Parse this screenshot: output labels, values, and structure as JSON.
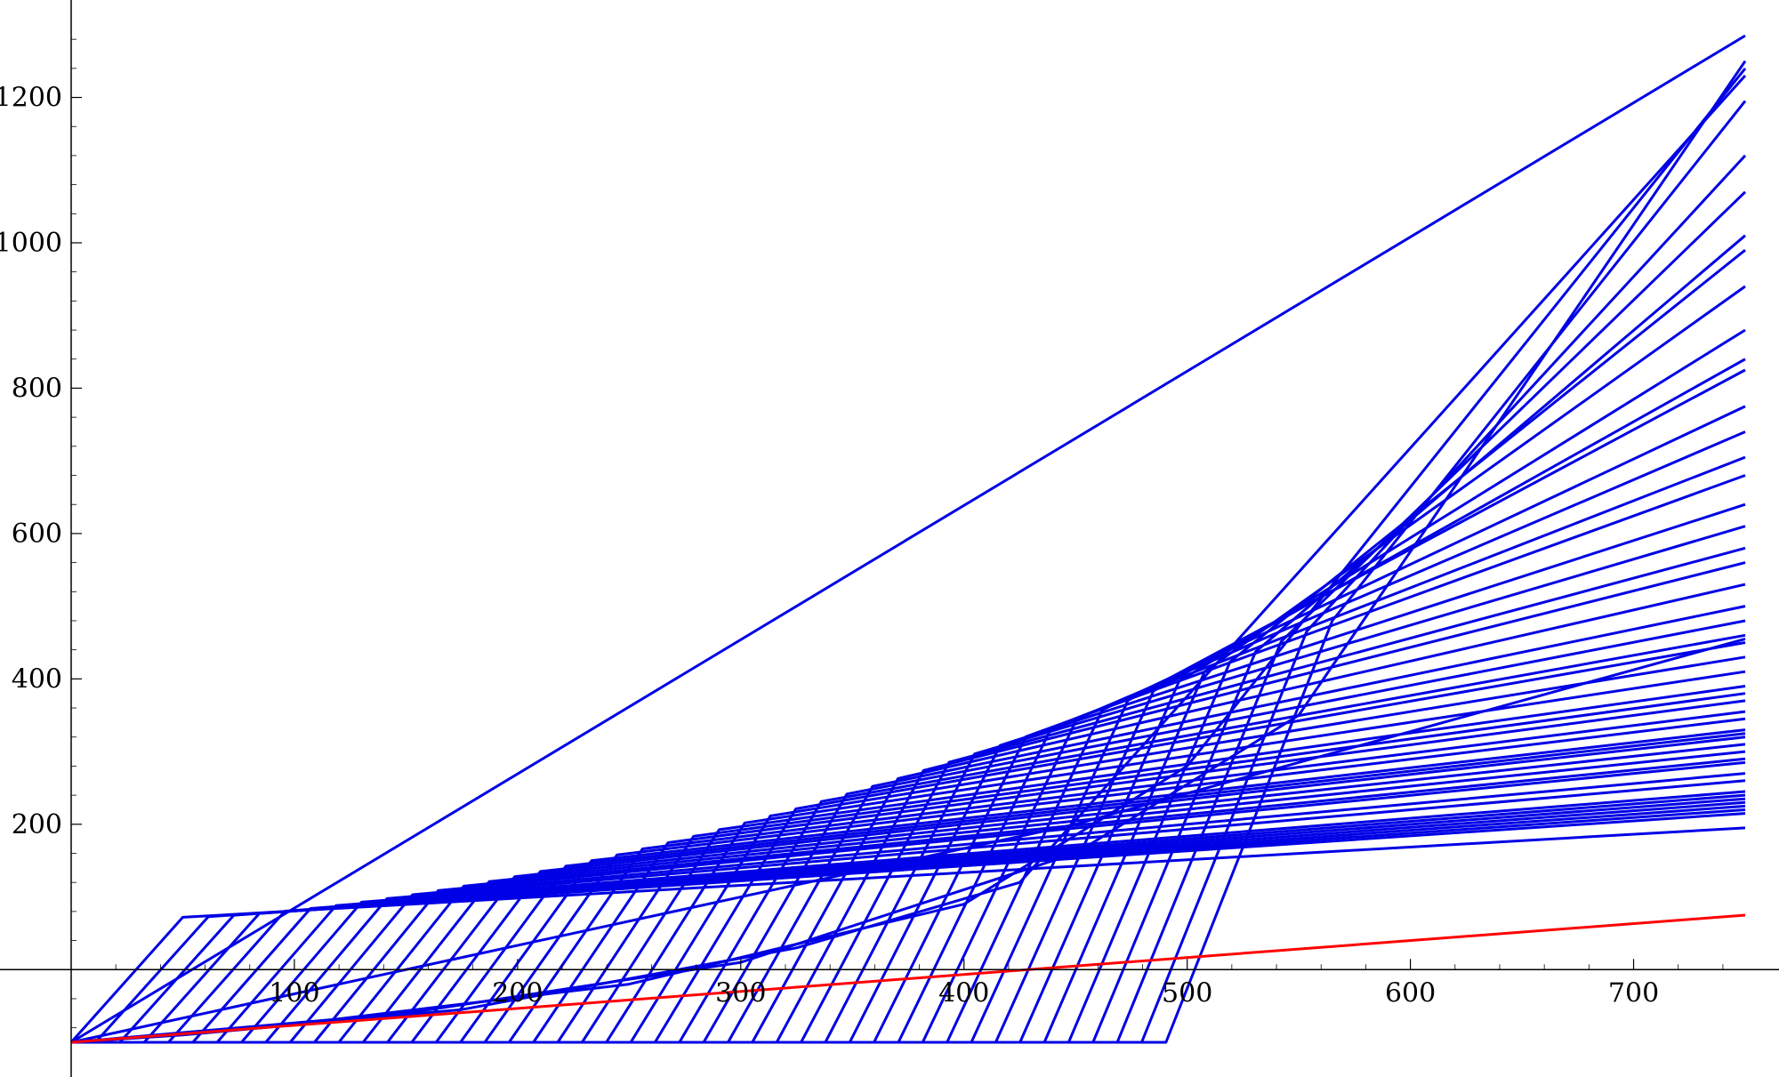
{
  "chart_data": {
    "type": "line",
    "title": "",
    "xlabel": "",
    "ylabel": "",
    "xlim": [
      0,
      750
    ],
    "ylim": [
      -100,
      1290
    ],
    "x_ticks": [
      100,
      200,
      300,
      400,
      500,
      600,
      700
    ],
    "y_ticks": [
      200,
      400,
      600,
      800,
      1000,
      1200
    ],
    "grid": false,
    "legend": "none",
    "colors": {
      "fan": "#0000e6",
      "reference": "#ff0000"
    },
    "fan": {
      "origin": [
        0,
        -100
      ],
      "end_x": 750,
      "floor_y": -100,
      "count": 46,
      "first_flat_end_x": 0,
      "flat_end_x_step": 10.9,
      "kink_start_x": 50,
      "kink_end_x": 565,
      "kink_y_low": 72,
      "kink_y_high": 480,
      "end_y_values": [
        195,
        215,
        220,
        225,
        230,
        235,
        240,
        245,
        260,
        270,
        285,
        290,
        300,
        310,
        320,
        325,
        330,
        345,
        355,
        370,
        380,
        390,
        410,
        430,
        450,
        460,
        480,
        500,
        530,
        560,
        580,
        610,
        640,
        680,
        705,
        740,
        775,
        825,
        840,
        880,
        940,
        990,
        1010,
        1070,
        1120,
        1195
      ]
    },
    "extra_series": [
      {
        "x": [
          0,
          750
        ],
        "y": [
          -100,
          1285
        ]
      },
      {
        "x": [
          0,
          50,
          175,
          325,
          425,
          750
        ],
        "y": [
          -100,
          -90,
          -55,
          30,
          120,
          1230
        ]
      },
      {
        "x": [
          0,
          100,
          250,
          400,
          500,
          750
        ],
        "y": [
          -100,
          -75,
          -20,
          90,
          280,
          1240
        ]
      },
      {
        "x": [
          0,
          150,
          300,
          450,
          550,
          750
        ],
        "y": [
          -100,
          -60,
          10,
          160,
          350,
          1250
        ]
      },
      {
        "x": [
          0,
          450,
          750
        ],
        "y": [
          -100,
          200,
          455
        ]
      }
    ],
    "reference_line": {
      "x": [
        0,
        750
      ],
      "y": [
        -100,
        75
      ]
    }
  }
}
